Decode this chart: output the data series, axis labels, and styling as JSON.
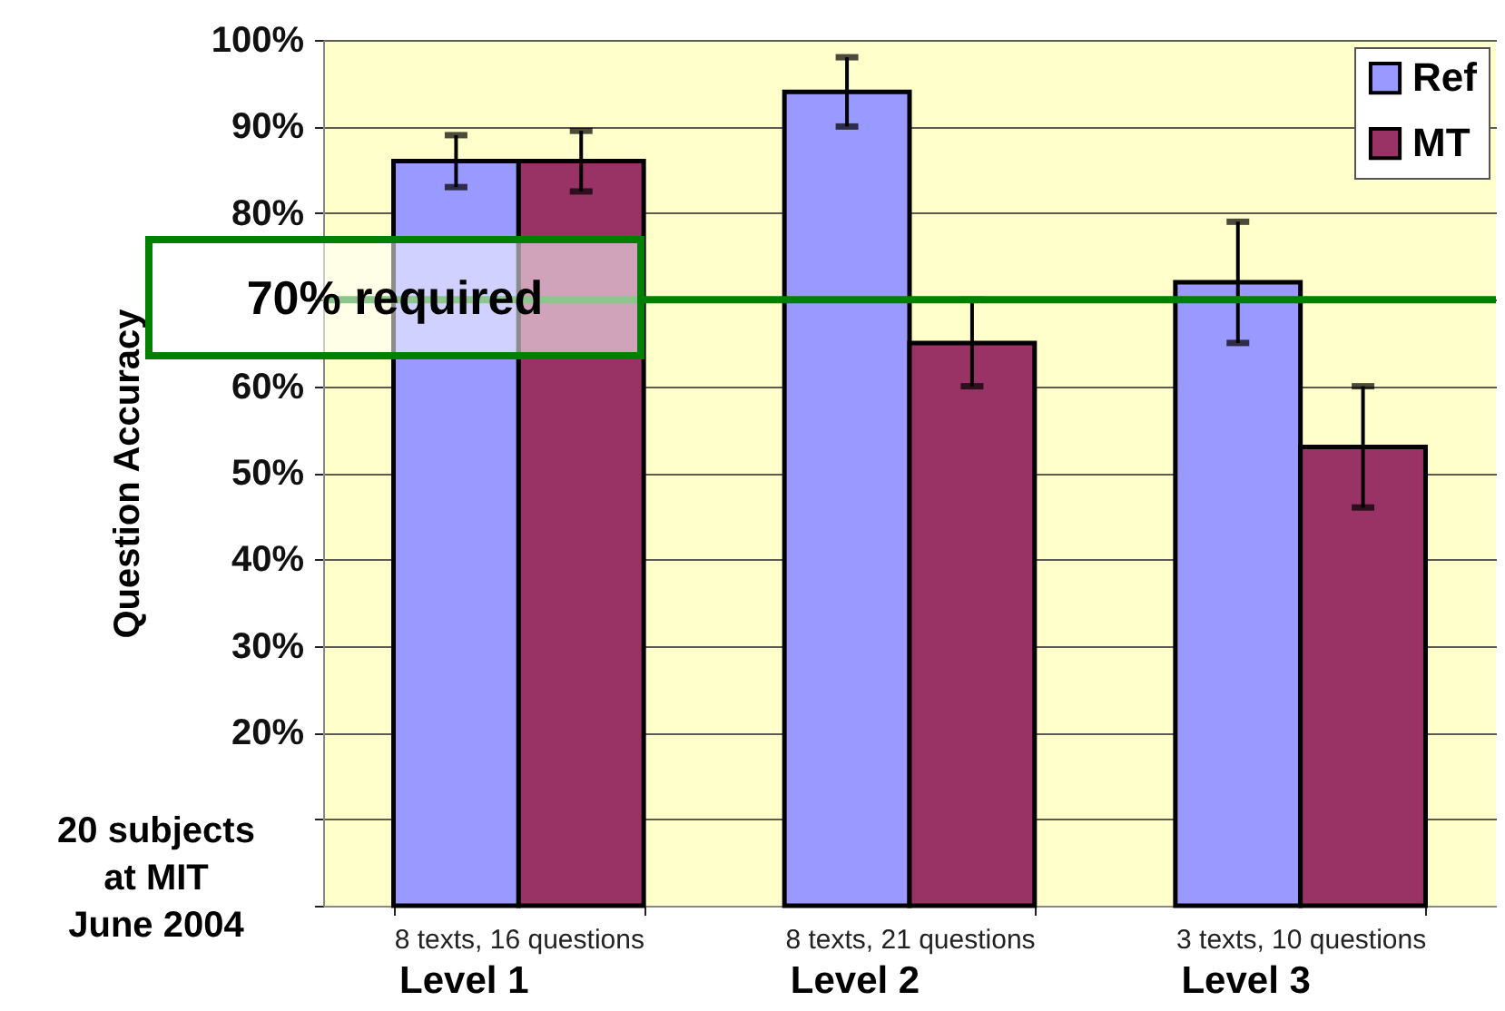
{
  "chart_data": {
    "type": "bar",
    "ylabel": "Question Accuracy",
    "categories": [
      "8 texts, 16 questions",
      "8 texts, 21 questions",
      "3 texts, 10 questions"
    ],
    "series": [
      {
        "name": "Ref",
        "color": "#9999ff",
        "values": [
          86,
          94,
          72
        ],
        "errors": [
          3,
          4,
          7
        ]
      },
      {
        "name": "MT",
        "color": "#993366",
        "values": [
          86,
          65,
          53
        ],
        "errors": [
          3.5,
          5,
          7
        ]
      }
    ],
    "ylim": [
      0,
      100
    ],
    "yticks": [
      {
        "value": 0,
        "label": null
      },
      {
        "value": 10,
        "label": null
      },
      {
        "value": 20,
        "label": "20%"
      },
      {
        "value": 30,
        "label": "30%"
      },
      {
        "value": 40,
        "label": "40%"
      },
      {
        "value": 50,
        "label": "50%"
      },
      {
        "value": 60,
        "label": "60%"
      },
      {
        "value": 70,
        "label": null
      },
      {
        "value": 80,
        "label": "80%"
      },
      {
        "value": 90,
        "label": "90%"
      },
      {
        "value": 100,
        "label": "100%"
      }
    ],
    "grid": "y",
    "legend": "top right",
    "ref_lines": [
      {
        "axis": "y",
        "value": 70,
        "label": "70% required",
        "color": "#008000"
      }
    ],
    "annotations": [
      "Level 1",
      "Level 2",
      "Level 3",
      "20 subjects\nat MIT\nJune 2004"
    ]
  }
}
